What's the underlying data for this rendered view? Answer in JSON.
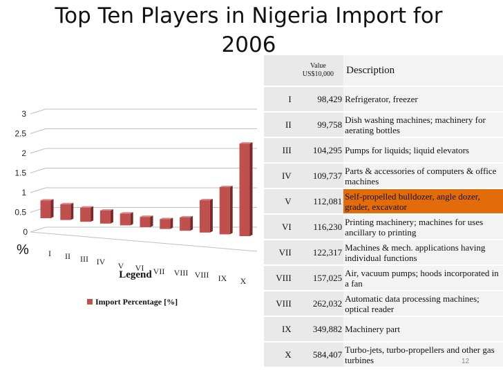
{
  "title_line1": "Top Ten Players in Nigeria Import for",
  "title_line2": "2006",
  "chart_data": {
    "type": "bar",
    "categories": [
      "I",
      "II",
      "III",
      "IV",
      "V",
      "VI",
      "VII",
      "VIII",
      "VIII",
      "IX",
      "X"
    ],
    "values": [
      0.45,
      0.4,
      0.36,
      0.33,
      0.3,
      0.26,
      0.25,
      0.34,
      0.82,
      1.2,
      2.35
    ],
    "ylim": [
      0,
      3
    ],
    "yticks": [
      "0",
      "0.5",
      "1",
      "1.5",
      "2",
      "2.5",
      "3"
    ],
    "ylabel": "%",
    "xlabel": "Legend",
    "series": [
      {
        "name": "Import Percentage [%]"
      }
    ],
    "bar_color": "#c0504d",
    "grid": true,
    "legend_position": "bottom"
  },
  "table": {
    "header": {
      "value": "Value US$10,000",
      "description": "Description"
    },
    "rows": [
      {
        "rank": "I",
        "value": "98,429",
        "desc": "Refrigerator, freezer"
      },
      {
        "rank": "II",
        "value": "99,758",
        "desc": "Dish washing machines; machinery for aerating bottles"
      },
      {
        "rank": "III",
        "value": "104,295",
        "desc": "Pumps for liquids; liquid elevators"
      },
      {
        "rank": "IV",
        "value": "109,737",
        "desc": "Parts & accessories of computers & office machines"
      },
      {
        "rank": "V",
        "value": "112,081",
        "desc": "Self-propelled bulldozer, angle dozer, grader, excavator"
      },
      {
        "rank": "VI",
        "value": "116,230",
        "desc": "Printing machinery; machines for uses ancillary to printing"
      },
      {
        "rank": "VII",
        "value": "122,317",
        "desc": "Machines & mech. applications having individual functions"
      },
      {
        "rank": "VIII",
        "value": "157,025",
        "desc": "Air, vacuum pumps; hoods incorporated in a fan"
      },
      {
        "rank": "VIII",
        "value": "262,032",
        "desc": "Automatic data processing machines; optical reader"
      },
      {
        "rank": "IX",
        "value": "349,882",
        "desc": "Machinery part"
      },
      {
        "rank": "X",
        "value": "584,407",
        "desc": "Turbo-jets, turbo-propellers and other gas turbines"
      }
    ],
    "highlight_color": "#e26b0a"
  },
  "page_number": "12"
}
